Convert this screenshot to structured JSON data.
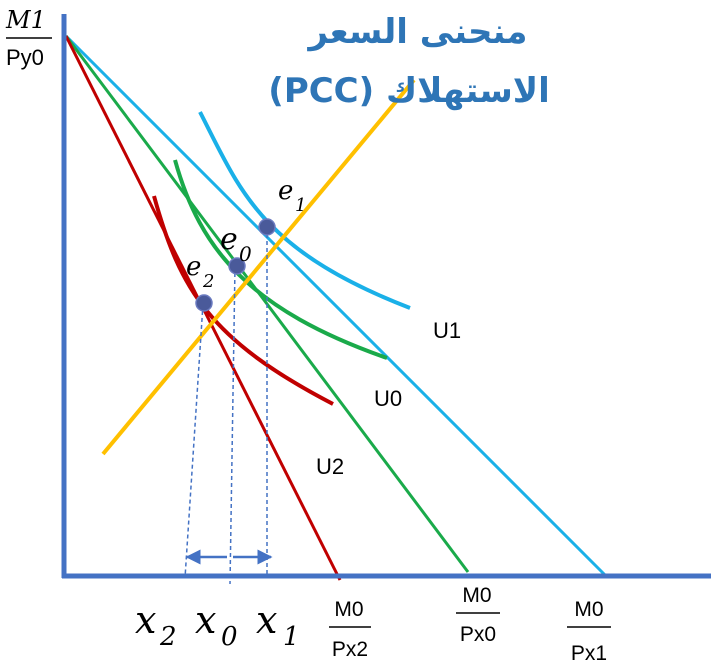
{
  "title": {
    "line1": "منحنى السعر",
    "line2": "الاستهلاك (PCC)"
  },
  "y_axis": {
    "numerator": "M1",
    "denominator": "Py0"
  },
  "x_intercepts": [
    {
      "numerator": "M0",
      "denominator": "Px2"
    },
    {
      "numerator": "M0",
      "denominator": "Px0"
    },
    {
      "numerator": "M0",
      "denominator": "Px1"
    }
  ],
  "indifference_labels": {
    "u1": "U1",
    "u0": "U0",
    "u2": "U2"
  },
  "equilibria": {
    "e1": {
      "base": "e",
      "sub": "1"
    },
    "e0": {
      "base": "e",
      "sub": "0"
    },
    "e2": {
      "base": "e",
      "sub": "2"
    }
  },
  "quantities": {
    "x2": {
      "base": "x",
      "sub": "2"
    },
    "x0": {
      "base": "x",
      "sub": "0"
    },
    "x1": {
      "base": "x",
      "sub": "1"
    }
  },
  "colors": {
    "axis": "#4472c4",
    "budget_px1": "#1ab0e8",
    "budget_px0": "#1aaa4a",
    "budget_px2": "#c00000",
    "pcc": "#ffc000",
    "point": "#4a5a9a",
    "title": "#2e75b6",
    "arrow": "#4472c4"
  }
}
